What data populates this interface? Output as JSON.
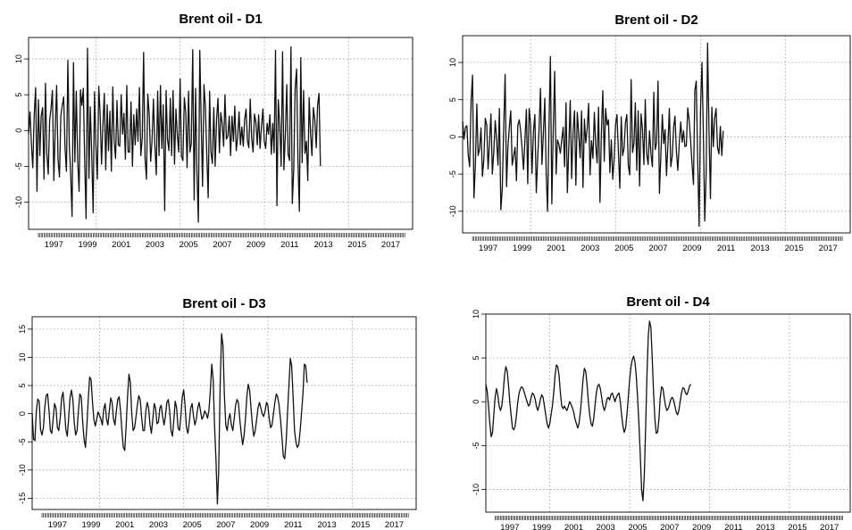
{
  "chart_data": [
    {
      "type": "line",
      "title": "Brent oil - D1",
      "xlabel": "",
      "ylabel": "",
      "x_ticks": [
        "1997",
        "1999",
        "2001",
        "2003",
        "2005",
        "2007",
        "2009",
        "2011",
        "2013",
        "2015",
        "2017"
      ],
      "xlim": [
        1996.0,
        2018.8
      ],
      "yticks": [
        -10,
        -5,
        0,
        5,
        10
      ],
      "ylim": [
        -13.8,
        13.0
      ],
      "grid": true,
      "vlines": [
        2000,
        2005,
        2010,
        2015
      ],
      "legend": "none",
      "series": [
        {
          "x_start": 1996.0,
          "x_step": 0.0833,
          "values": [
            -0.5,
            2.6,
            -1.8,
            -5.2,
            2.2,
            6.0,
            -8.5,
            4.3,
            -3.5,
            2.0,
            3.2,
            -6.8,
            6.6,
            -3.2,
            -6.1,
            1.5,
            3.0,
            5.6,
            -7.0,
            0.0,
            6.3,
            -4.1,
            -6.5,
            2.0,
            3.5,
            4.7,
            -2.4,
            -5.7,
            9.8,
            -2.0,
            -6.0,
            -12.0,
            9.5,
            -4.4,
            5.5,
            -4.2,
            -8.5,
            5.7,
            3.5,
            5.9,
            -4.1,
            -12.3,
            11.5,
            -6.7,
            3.3,
            -3.2,
            -11.5,
            5.4,
            -2.1,
            -6.8,
            6.2,
            2.4,
            -4.7,
            1.0,
            5.2,
            -5.5,
            3.6,
            -2.8,
            2.7,
            -5.7,
            6.1,
            -1.5,
            -3.9,
            4.2,
            -2.0,
            -2.2,
            5.0,
            -0.5,
            2.4,
            -4.0,
            6.3,
            -3.0,
            -3.0,
            4.0,
            -5.0,
            2.2,
            -2.0,
            3.0,
            -1.5,
            6.0,
            -3.5,
            -1.0,
            10.9,
            -3.8,
            -6.8,
            5.1,
            2.2,
            -4.3,
            -1.5,
            4.4,
            -2.0,
            -6.2,
            5.5,
            -3.5,
            6.3,
            -2.5,
            3.6,
            -11.2,
            5.6,
            -1.2,
            -2.8,
            4.5,
            -3.5,
            5.6,
            -4.7,
            3.0,
            -0.5,
            -3.0,
            7.2,
            -3.6,
            -4.2,
            4.6,
            2.5,
            -5.2,
            5.5,
            -3.0,
            -1.8,
            11.3,
            -9.7,
            5.9,
            -5.8,
            -12.8,
            11.2,
            1.8,
            -7.8,
            6.4,
            3.5,
            -3.2,
            -9.4,
            5.5,
            -3.0,
            -4.6,
            3.2,
            -5.0,
            1.6,
            4.5,
            -3.1,
            2.5,
            1.0,
            -2.2,
            5.0,
            -1.2,
            -0.8,
            2.0,
            -3.5,
            2.0,
            -1.5,
            3.4,
            -2.8,
            -1.0,
            2.6,
            -2.0,
            0.5,
            -2.2,
            1.5,
            3.0,
            -1.5,
            -2.4,
            4.4,
            -1.0,
            -3.0,
            2.3,
            1.2,
            -2.0,
            2.2,
            -2.5,
            0.6,
            3.0,
            -1.5,
            -2.5,
            1.0,
            -0.5,
            2.2,
            -3.3,
            1.0,
            -3.1,
            11.2,
            -10.5,
            4.3,
            0.8,
            -5.0,
            11.0,
            -5.5,
            -0.5,
            6.4,
            -3.3,
            -4.2,
            11.7,
            -10.2,
            -5.5,
            6.0,
            8.6,
            -3.9,
            -11.3,
            10.2,
            -4.5,
            5.6,
            -3.2,
            -1.5,
            -7.0,
            4.6,
            -0.5,
            -3.5,
            3.2,
            1.5,
            -2.4,
            3.5,
            5.2,
            -5.0
          ]
        }
      ]
    },
    {
      "type": "line",
      "title": "Brent oil - D2",
      "xlabel": "",
      "ylabel": "",
      "x_ticks": [
        "1997",
        "1999",
        "2001",
        "2003",
        "2005",
        "2007",
        "2009",
        "2011",
        "2013",
        "2015",
        "2017"
      ],
      "xlim": [
        1996.0,
        2018.8
      ],
      "yticks": [
        -10,
        -5,
        0,
        5,
        10
      ],
      "ylim": [
        -12.9,
        13.6
      ],
      "grid": true,
      "vlines": [
        2000,
        2005,
        2010,
        2015
      ],
      "legend": "none",
      "series": [
        {
          "x_start": 1996.0,
          "x_step": 0.0833,
          "values": [
            2.1,
            -0.3,
            1.3,
            1.5,
            -2.5,
            -4.0,
            4.8,
            8.3,
            -8.2,
            -3.7,
            4.4,
            -2.5,
            -1.6,
            1.2,
            -5.3,
            -3.0,
            2.5,
            1.6,
            -4.3,
            -0.8,
            3.1,
            -5.0,
            -2.0,
            2.2,
            -0.4,
            -3.8,
            3.8,
            -9.8,
            -7.0,
            1.1,
            8.4,
            -6.7,
            -1.4,
            1.3,
            3.5,
            -3.8,
            -2.6,
            -1.4,
            -5.9,
            1.5,
            2.3,
            0.8,
            -1.6,
            -4.4,
            -0.4,
            3.7,
            -6.3,
            3.8,
            1.7,
            -4.9,
            0.7,
            3.0,
            -7.5,
            -3.0,
            1.0,
            6.5,
            -3.7,
            0.3,
            5.2,
            -5.0,
            -10.0,
            1.3,
            10.8,
            -9.0,
            1.0,
            8.8,
            -5.0,
            -0.4,
            -1.0,
            -2.2,
            -0.4,
            1.3,
            -4.0,
            4.6,
            -7.5,
            -1.3,
            4.9,
            -5.6,
            0.7,
            3.5,
            -6.5,
            3.3,
            0.4,
            -2.8,
            3.5,
            -6.8,
            2.4,
            -0.8,
            1.1,
            4.5,
            -5.1,
            -0.5,
            -2.9,
            3.3,
            -1.0,
            -3.5,
            4.0,
            -8.8,
            0.5,
            6.2,
            -3.3,
            3.8,
            1.6,
            2.3,
            -4.8,
            -0.4,
            -5.7,
            -2.9,
            1.6,
            3.0,
            -1.9,
            -6.9,
            2.7,
            -2.5,
            -1.5,
            1.9,
            3.0,
            -3.8,
            -5.1,
            7.7,
            -2.1,
            -0.8,
            4.6,
            -4.5,
            3.5,
            -6.6,
            3.1,
            1.0,
            -3.7,
            5.0,
            -2.2,
            -3.7,
            0.8,
            -2.3,
            -4.0,
            6.0,
            -1.7,
            -0.8,
            7.5,
            -7.6,
            -2.4,
            3.0,
            -0.9,
            1.0,
            -5.2,
            -1.0,
            3.8,
            -4.0,
            -2.6,
            1.3,
            2.8,
            -2.0,
            -4.5,
            -0.8,
            2.0,
            -0.7,
            0.8,
            -1.3,
            -1.2,
            3.9,
            2.2,
            -0.5,
            -3.6,
            -6.4,
            6.2,
            7.5,
            -3.0,
            -12.0,
            3.7,
            10.0,
            0.3,
            -11.3,
            -5.0,
            12.6,
            0.7,
            -8.3,
            4.0,
            -1.3,
            2.5,
            3.8,
            -1.4,
            -2.3,
            1.4,
            -2.5,
            0.8
          ]
        }
      ]
    },
    {
      "type": "line",
      "title": "Brent oil - D3",
      "xlabel": "",
      "ylabel": "",
      "x_ticks": [
        "1997",
        "1999",
        "2001",
        "2003",
        "2005",
        "2007",
        "2009",
        "2011",
        "2013",
        "2015",
        "2017"
      ],
      "xlim": [
        1996.0,
        2018.8
      ],
      "yticks": [
        -15,
        -10,
        -5,
        0,
        5,
        10,
        15
      ],
      "ylim": [
        -17.0,
        17.2
      ],
      "grid": true,
      "vlines": [
        2000,
        2005,
        2010,
        2015
      ],
      "legend": "none",
      "series": [
        {
          "x_start": 1996.0,
          "x_step": 0.0833,
          "values": [
            0.0,
            -4.5,
            -4.8,
            0.5,
            2.6,
            2.2,
            -2.8,
            -3.8,
            -2.5,
            1.0,
            3.2,
            3.5,
            0.5,
            -3.0,
            -3.5,
            -0.8,
            1.8,
            1.0,
            -2.5,
            -3.0,
            -0.8,
            2.8,
            3.8,
            1.0,
            -2.8,
            -4.0,
            -1.0,
            2.8,
            4.2,
            2.5,
            -1.5,
            -3.8,
            -3.0,
            0.5,
            3.5,
            3.0,
            -1.5,
            -4.5,
            -6.0,
            -2.0,
            2.5,
            6.5,
            6.0,
            2.0,
            -1.0,
            -2.2,
            -1.0,
            0.3,
            -0.3,
            -1.0,
            -2.0,
            0.8,
            1.8,
            -1.0,
            -2.0,
            0.5,
            2.8,
            2.0,
            -1.0,
            -2.0,
            0.5,
            2.5,
            3.0,
            0.5,
            -3.0,
            -6.0,
            -6.5,
            -2.0,
            3.0,
            7.0,
            5.5,
            0.0,
            -3.0,
            -2.5,
            -0.5,
            1.5,
            3.2,
            2.5,
            -0.5,
            -3.0,
            -3.0,
            0.5,
            2.0,
            1.0,
            -2.0,
            -3.5,
            -1.0,
            1.8,
            1.0,
            -1.8,
            -1.5,
            1.0,
            1.5,
            -0.5,
            -2.0,
            -0.5,
            2.0,
            2.5,
            0.5,
            -3.0,
            -4.0,
            -1.0,
            2.2,
            1.0,
            -2.5,
            -3.0,
            -0.5,
            3.0,
            4.2,
            1.5,
            -2.5,
            -3.5,
            -1.5,
            1.0,
            1.8,
            -0.5,
            -2.0,
            -1.0,
            1.0,
            2.0,
            0.5,
            -1.0,
            -0.5,
            0.5,
            0.0,
            -0.8,
            0.5,
            4.0,
            8.8,
            6.0,
            -2.0,
            -8.0,
            -16.0,
            -10.0,
            5.0,
            14.2,
            12.0,
            3.5,
            -2.0,
            -3.0,
            -1.0,
            0.0,
            -2.0,
            -3.0,
            -1.0,
            1.5,
            2.5,
            2.0,
            -1.0,
            -3.5,
            -5.5,
            -4.0,
            -1.0,
            3.0,
            5.2,
            4.2,
            1.0,
            -2.0,
            -4.0,
            -3.0,
            -1.0,
            1.0,
            2.0,
            1.0,
            0.0,
            -0.5,
            0.5,
            2.0,
            1.5,
            -1.0,
            -2.5,
            -2.0,
            0.0,
            2.0,
            3.5,
            3.0,
            1.5,
            -1.0,
            -4.0,
            -7.5,
            -8.0,
            -5.0,
            0.0,
            5.0,
            9.8,
            8.5,
            3.0,
            -3.0,
            -5.0,
            -6.0,
            -5.5,
            -3.0,
            0.0,
            3.5,
            8.8,
            8.5,
            5.5
          ]
        }
      ]
    },
    {
      "type": "line",
      "title": "Brent oil - D4",
      "xlabel": "",
      "ylabel": "",
      "x_ticks": [
        "1997",
        "1999",
        "2001",
        "2003",
        "2005",
        "2007",
        "2009",
        "2011",
        "2013",
        "2015",
        "2017"
      ],
      "xlim": [
        1996.0,
        2018.8
      ],
      "yticks": [
        -10,
        -5,
        0,
        5,
        10
      ],
      "ylim": [
        -12.6,
        10.0
      ],
      "grid": true,
      "vlines": [
        2000,
        2005,
        2010,
        2015
      ],
      "legend": "none",
      "series": [
        {
          "x_start": 1996.0,
          "x_step": 0.0833,
          "values": [
            2.0,
            1.2,
            -0.5,
            -2.5,
            -4.0,
            -3.5,
            -1.5,
            0.5,
            1.5,
            0.8,
            -0.5,
            -1.0,
            -0.5,
            1.0,
            3.0,
            4.0,
            3.5,
            2.0,
            0.0,
            -1.5,
            -3.0,
            -3.2,
            -2.8,
            -1.5,
            0.0,
            1.0,
            1.5,
            1.7,
            1.5,
            1.0,
            0.5,
            0.0,
            -0.5,
            -0.3,
            0.5,
            1.0,
            0.8,
            0.3,
            -0.5,
            -1.0,
            -0.5,
            0.3,
            0.8,
            0.5,
            -0.5,
            -1.5,
            -2.5,
            -3.0,
            -2.5,
            -1.5,
            -0.5,
            1.0,
            3.0,
            4.2,
            4.0,
            3.0,
            1.0,
            -0.5,
            -0.8,
            -0.5,
            -0.8,
            -1.0,
            -0.5,
            0.0,
            -0.3,
            -0.7,
            -1.2,
            -2.0,
            -2.5,
            -3.0,
            -2.5,
            -1.2,
            0.5,
            2.5,
            3.8,
            3.5,
            2.0,
            0.0,
            -1.5,
            -2.5,
            -2.8,
            -2.0,
            -0.5,
            1.0,
            1.8,
            2.0,
            1.5,
            0.5,
            -0.5,
            -1.0,
            -0.5,
            0.3,
            0.5,
            0.2,
            0.8,
            1.0,
            0.5,
            0.0,
            0.5,
            0.8,
            1.0,
            0.0,
            -1.5,
            -2.8,
            -3.5,
            -3.0,
            -1.5,
            0.5,
            2.5,
            4.0,
            4.8,
            5.2,
            4.5,
            3.0,
            0.5,
            -2.5,
            -6.0,
            -10.0,
            -11.3,
            -8.5,
            -3.0,
            3.0,
            7.5,
            9.2,
            8.5,
            5.0,
            1.0,
            -2.0,
            -3.6,
            -3.5,
            -2.0,
            0.5,
            1.7,
            1.5,
            0.5,
            -0.5,
            -1.0,
            -0.8,
            -0.3,
            0.3,
            0.5,
            0.2,
            -0.5,
            -1.2,
            -1.5,
            -1.0,
            0.0,
            1.0,
            1.6,
            1.5,
            1.0,
            0.8,
            1.2,
            1.8,
            2.0
          ]
        }
      ]
    }
  ]
}
